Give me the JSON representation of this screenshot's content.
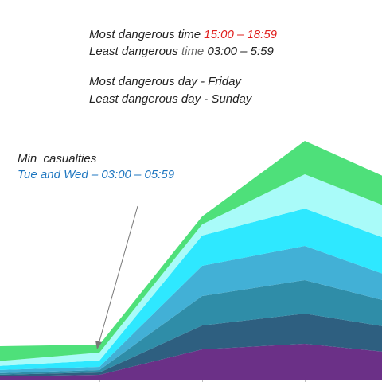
{
  "notes": {
    "most_time_label": "Most dangerous time",
    "most_time_value": "15:00 – 18:59",
    "least_time_label": "Least dangerous",
    "least_time_word": "time",
    "least_time_value": "03:00 – 5:59",
    "most_day": "Most dangerous day - Friday",
    "least_day": "Least dangerous day - Sunday",
    "min_title": "Min  casualties",
    "min_detail": "Tue and Wed – 03:00 – 05:59"
  },
  "colors": {
    "most_time_value": "#e0201e",
    "min_detail": "#1f77c0",
    "annotation_arrow": "#777777"
  },
  "chart_data": {
    "type": "area",
    "stacked": true,
    "x": [
      0,
      1,
      2,
      3,
      4
    ],
    "xlim": [
      0,
      4
    ],
    "ylim": [
      0,
      300
    ],
    "series": [
      {
        "color": "#6b3087",
        "values": [
          4,
          6,
          38,
          45,
          32
        ]
      },
      {
        "color": "#2e5f80",
        "values": [
          2,
          3,
          30,
          38,
          30
        ]
      },
      {
        "color": "#2f8da8",
        "values": [
          2,
          3,
          37,
          42,
          30
        ]
      },
      {
        "color": "#42b0d6",
        "values": [
          4,
          4,
          38,
          43,
          30
        ]
      },
      {
        "color": "#2ee8ff",
        "values": [
          5,
          8,
          38,
          47,
          45
        ]
      },
      {
        "color": "#a9fbf9",
        "values": [
          6,
          10,
          14,
          43,
          40
        ]
      },
      {
        "color": "#4ee07a",
        "values": [
          19,
          10,
          10,
          42,
          35
        ]
      }
    ],
    "grid": false,
    "annotations": [
      {
        "text_ref": "notes.min_title",
        "points_to_x": 1
      }
    ]
  }
}
